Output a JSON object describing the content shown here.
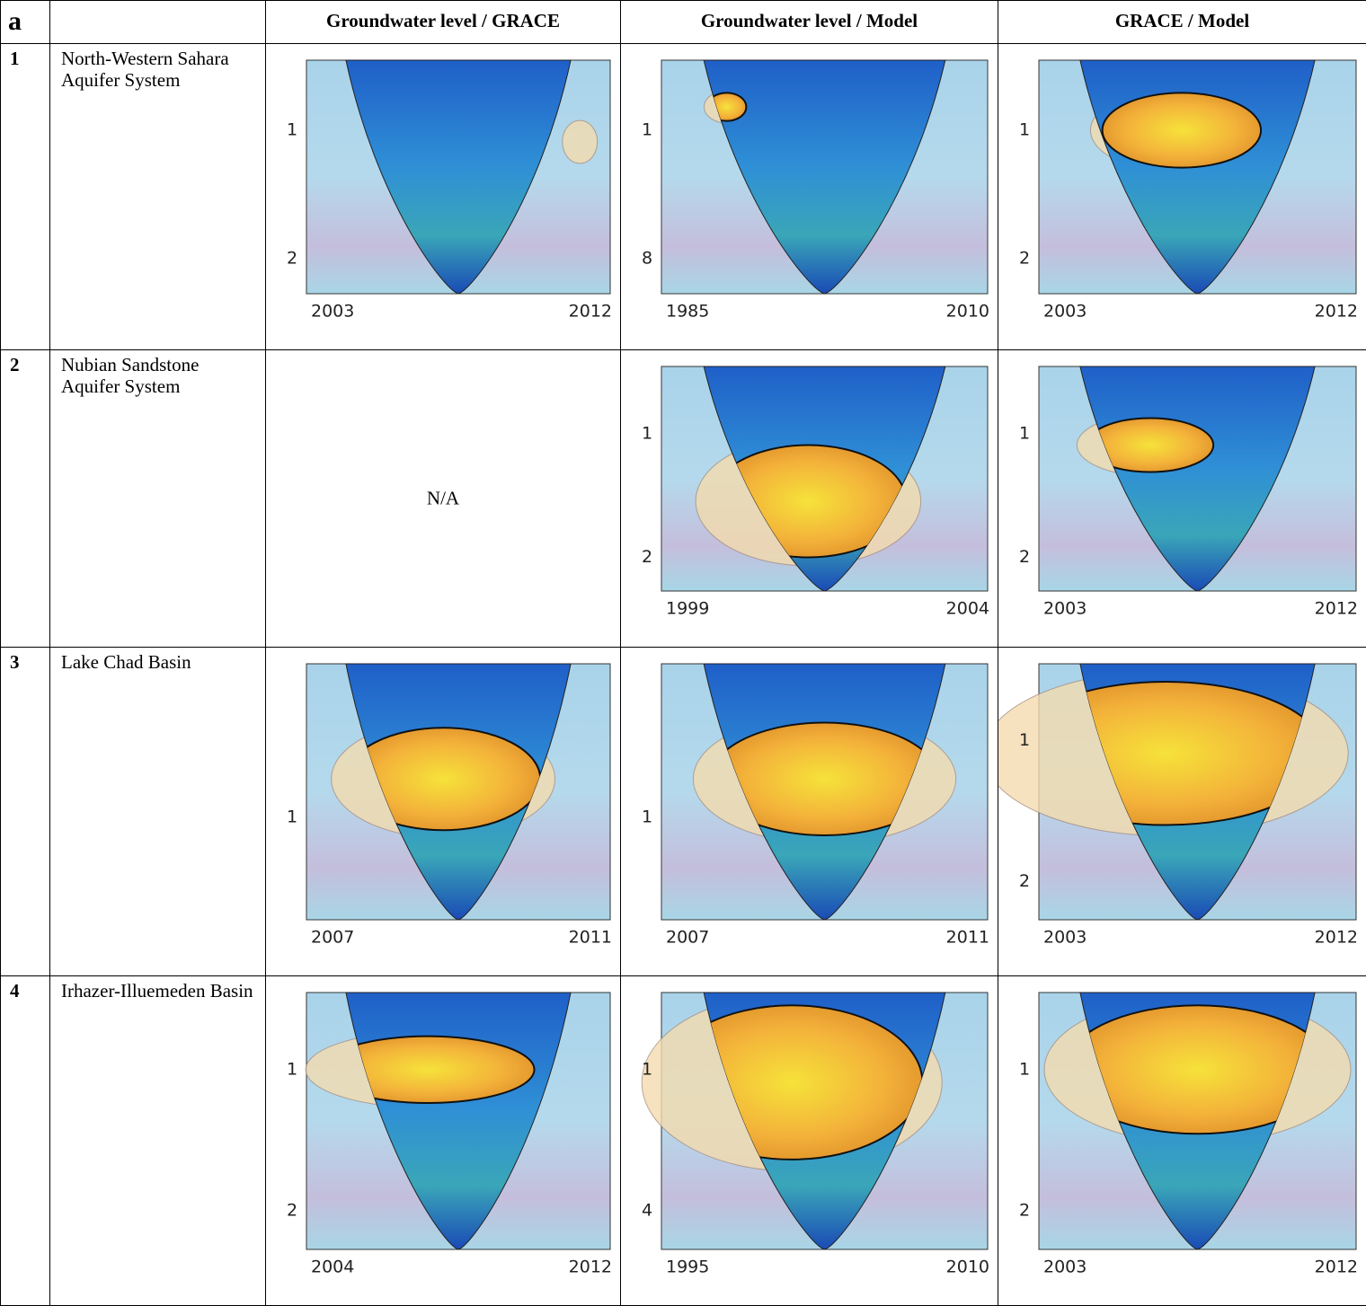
{
  "header": {
    "label": "a",
    "columns": [
      "Groundwater level / GRACE",
      "Groundwater level / Model",
      "GRACE / Model"
    ]
  },
  "rows": [
    {
      "number": "1",
      "name": "North-Western Sahara Aquifer System",
      "panels": [
        {
          "y_labels": [
            "1",
            "2"
          ],
          "x_labels": [
            "2003",
            "2012"
          ]
        },
        {
          "y_labels": [
            "1",
            "8"
          ],
          "x_labels": [
            "1985",
            "2010"
          ]
        },
        {
          "y_labels": [
            "1",
            "2"
          ],
          "x_labels": [
            "2003",
            "2012"
          ]
        }
      ]
    },
    {
      "number": "2",
      "name": "Nubian Sandstone Aquifer System",
      "panels": [
        {
          "text": "N/A"
        },
        {
          "y_labels": [
            "1",
            "2"
          ],
          "x_labels": [
            "1999",
            "2004"
          ]
        },
        {
          "y_labels": [
            "1",
            "2"
          ],
          "x_labels": [
            "2003",
            "2012"
          ]
        }
      ]
    },
    {
      "number": "3",
      "name": "Lake Chad Basin",
      "panels": [
        {
          "y_labels": [
            "1"
          ],
          "x_labels": [
            "2007",
            "2011"
          ]
        },
        {
          "y_labels": [
            "1"
          ],
          "x_labels": [
            "2007",
            "2011"
          ]
        },
        {
          "y_labels": [
            "1",
            "2"
          ],
          "x_labels": [
            "2003",
            "2012"
          ]
        }
      ]
    },
    {
      "number": "4",
      "name": "Irhazer-Illuemeden Basin",
      "panels": [
        {
          "y_labels": [
            "1",
            "2"
          ],
          "x_labels": [
            "2004",
            "2012"
          ]
        },
        {
          "y_labels": [
            "1",
            "4"
          ],
          "x_labels": [
            "1995",
            "2010"
          ]
        },
        {
          "y_labels": [
            "1",
            "2"
          ],
          "x_labels": [
            "2003",
            "2012"
          ]
        }
      ]
    }
  ]
}
